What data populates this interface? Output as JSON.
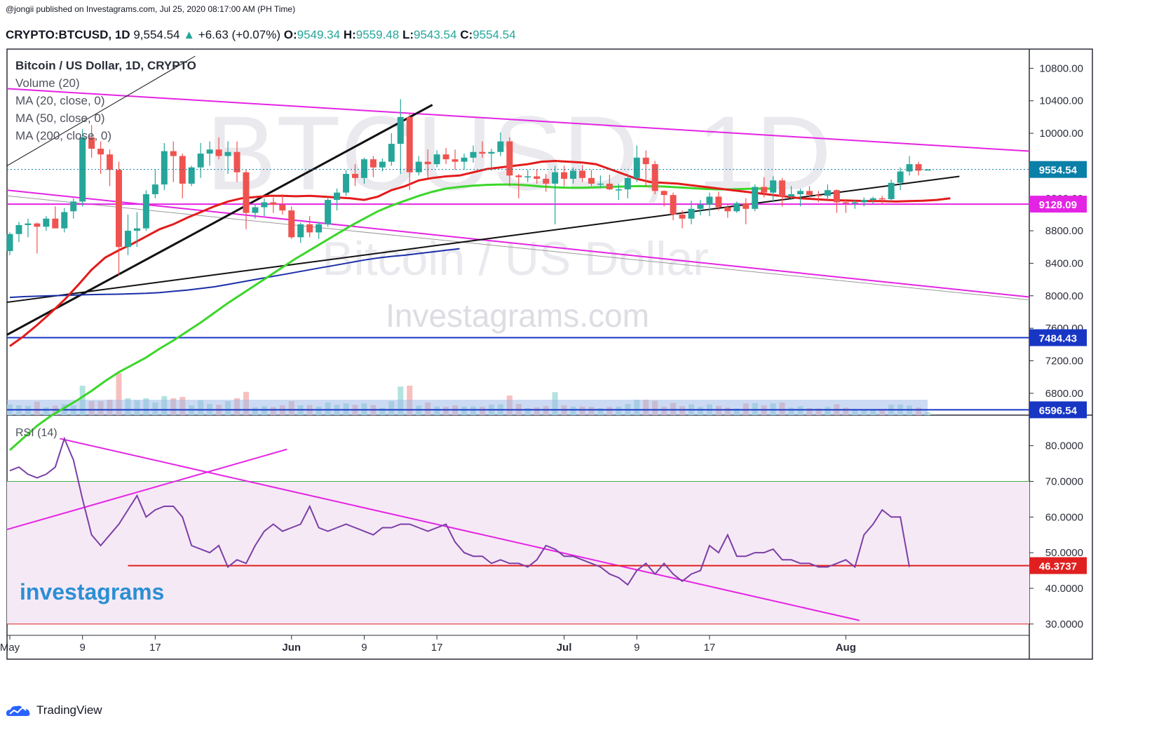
{
  "header": {
    "publish_line": "@jongii published on Investagrams.com, Jul 25, 2020 08:17:00 AM (PH Time)",
    "symbol": "CRYPTO:BTCUSD, 1D",
    "last": "9,554.54",
    "change": "+6.63 (+0.07%)",
    "o_label": "O:",
    "o_value": "9549.34",
    "h_label": "H:",
    "h_value": "9559.48",
    "l_label": "L:",
    "l_value": "9543.54",
    "c_label": "C:",
    "c_value": "9554.54"
  },
  "legend": {
    "title": "Bitcoin / US Dollar, 1D, CRYPTO",
    "volume": "Volume (20)",
    "ma20": "MA (20, close, 0)",
    "ma50": "MA (50, close, 0)",
    "ma200": "MA (200, close, 0)",
    "rsi": "RSI (14)"
  },
  "watermark": {
    "ticker": "BTCUSD, 1D",
    "name": "Bitcoin / US Dollar",
    "site": "Investagrams.com",
    "brand": "investagrams"
  },
  "footer": {
    "brand": "TradingView"
  },
  "colors": {
    "up": "#26a69a",
    "down": "#ef5350",
    "ma20": "#e31b1b",
    "ma50": "#3bd62a",
    "ma200": "#1a2fa8",
    "channel": "#e424e4",
    "rsi": "#7b3fa6",
    "badge_price": "#0a7fa8",
    "badge_magenta": "#e424e4",
    "badge_blue": "#1836c4",
    "badge_red": "#e02020"
  },
  "chart_data": [
    {
      "type": "candlestick",
      "title": "Bitcoin / US Dollar, 1D, CRYPTO",
      "ylim": [
        6600,
        10950
      ],
      "y_ticks": [
        "6800.00",
        "7200.00",
        "7600.00",
        "8000.00",
        "8400.00",
        "8800.00",
        "9200.00",
        "9600.00",
        "10000.00",
        "10400.00",
        "10800.00"
      ],
      "x_ticks": [
        "May",
        "9",
        "17",
        "Jun",
        "9",
        "17",
        "Jul",
        "9",
        "17",
        "Aug"
      ],
      "x_tick_days": [
        0,
        8,
        16,
        31,
        39,
        47,
        61,
        69,
        77,
        92
      ],
      "candles": [
        [
          0,
          8550,
          8780,
          8500,
          8760
        ],
        [
          1,
          8760,
          8910,
          8660,
          8870
        ],
        [
          2,
          8870,
          8950,
          8720,
          8890
        ],
        [
          3,
          8890,
          8900,
          8520,
          8850
        ],
        [
          4,
          8850,
          8980,
          8800,
          8950
        ],
        [
          5,
          8950,
          9100,
          8860,
          8830
        ],
        [
          6,
          8830,
          9080,
          8780,
          9030
        ],
        [
          7,
          9040,
          9200,
          8950,
          9160
        ],
        [
          8,
          9160,
          10050,
          9100,
          9950
        ],
        [
          9,
          9950,
          10100,
          9700,
          9810
        ],
        [
          10,
          9810,
          9900,
          9500,
          9740
        ],
        [
          11,
          9740,
          9800,
          9350,
          9550
        ],
        [
          12,
          9550,
          9650,
          8250,
          8600
        ],
        [
          13,
          8600,
          9000,
          8500,
          8800
        ],
        [
          14,
          8800,
          9030,
          8600,
          8830
        ],
        [
          15,
          8830,
          9300,
          8800,
          9250
        ],
        [
          16,
          9250,
          9550,
          9200,
          9370
        ],
        [
          17,
          9370,
          9880,
          9300,
          9780
        ],
        [
          18,
          9780,
          9900,
          9400,
          9720
        ],
        [
          19,
          9720,
          9750,
          9200,
          9380
        ],
        [
          20,
          9380,
          9600,
          9350,
          9580
        ],
        [
          21,
          9580,
          9880,
          9450,
          9750
        ],
        [
          22,
          9750,
          9900,
          9600,
          9800
        ],
        [
          23,
          9800,
          9950,
          9680,
          9720
        ],
        [
          24,
          9720,
          9900,
          9500,
          9770
        ],
        [
          25,
          9770,
          9900,
          9400,
          9520
        ],
        [
          26,
          9520,
          9550,
          8820,
          9020
        ],
        [
          27,
          9020,
          9130,
          8950,
          9090
        ],
        [
          28,
          9090,
          9200,
          8980,
          9150
        ],
        [
          29,
          9150,
          9210,
          9020,
          9120
        ],
        [
          30,
          9120,
          9250,
          9000,
          9050
        ],
        [
          31,
          9050,
          9100,
          8700,
          8720
        ],
        [
          32,
          8720,
          8900,
          8650,
          8880
        ],
        [
          33,
          8880,
          8980,
          8720,
          8780
        ],
        [
          34,
          8780,
          8910,
          8700,
          8880
        ],
        [
          35,
          8880,
          9200,
          8850,
          9180
        ],
        [
          36,
          9180,
          9320,
          9050,
          9270
        ],
        [
          37,
          9270,
          9550,
          9230,
          9500
        ],
        [
          38,
          9500,
          9620,
          9350,
          9450
        ],
        [
          39,
          9450,
          9700,
          9380,
          9680
        ],
        [
          40,
          9680,
          9720,
          9460,
          9580
        ],
        [
          41,
          9580,
          9690,
          9530,
          9650
        ],
        [
          42,
          9650,
          10000,
          9600,
          9870
        ],
        [
          43,
          9870,
          10420,
          9500,
          10200
        ],
        [
          44,
          10200,
          10250,
          9300,
          9520
        ],
        [
          45,
          9520,
          9720,
          9480,
          9650
        ],
        [
          46,
          9650,
          9800,
          9450,
          9620
        ],
        [
          47,
          9620,
          9790,
          9580,
          9740
        ],
        [
          48,
          9740,
          9820,
          9620,
          9680
        ],
        [
          49,
          9680,
          9800,
          9550,
          9650
        ],
        [
          50,
          9650,
          9750,
          9550,
          9700
        ],
        [
          51,
          9700,
          9850,
          9640,
          9770
        ],
        [
          52,
          9770,
          9900,
          9700,
          9750
        ],
        [
          53,
          9750,
          9810,
          9540,
          9770
        ],
        [
          54,
          9770,
          10010,
          9720,
          9900
        ],
        [
          55,
          9900,
          9950,
          9350,
          9480
        ],
        [
          56,
          9480,
          9500,
          9200,
          9460
        ],
        [
          57,
          9460,
          9550,
          9400,
          9470
        ],
        [
          58,
          9470,
          9560,
          9380,
          9440
        ],
        [
          59,
          9440,
          9500,
          9280,
          9380
        ],
        [
          60,
          9380,
          9600,
          8880,
          9520
        ],
        [
          61,
          9520,
          9600,
          9350,
          9440
        ],
        [
          62,
          9440,
          9580,
          9380,
          9540
        ],
        [
          63,
          9540,
          9610,
          9400,
          9450
        ],
        [
          64,
          9450,
          9550,
          9350,
          9380
        ],
        [
          65,
          9380,
          9480,
          9330,
          9380
        ],
        [
          66,
          9380,
          9490,
          9300,
          9310
        ],
        [
          67,
          9310,
          9380,
          9180,
          9310
        ],
        [
          68,
          9310,
          9500,
          9200,
          9450
        ],
        [
          69,
          9450,
          9850,
          9400,
          9700
        ],
        [
          70,
          9700,
          9790,
          9340,
          9620
        ],
        [
          71,
          9620,
          9660,
          9250,
          9290
        ],
        [
          72,
          9290,
          9300,
          9100,
          9240
        ],
        [
          73,
          9240,
          9270,
          8930,
          9000
        ],
        [
          74,
          9000,
          9050,
          8830,
          8950
        ],
        [
          75,
          8950,
          9170,
          8880,
          9070
        ],
        [
          76,
          9070,
          9180,
          8990,
          9120
        ],
        [
          77,
          9120,
          9270,
          8980,
          9220
        ],
        [
          78,
          9220,
          9280,
          9050,
          9090
        ],
        [
          79,
          9090,
          9130,
          8960,
          9040
        ],
        [
          80,
          9040,
          9160,
          9020,
          9140
        ],
        [
          81,
          9140,
          9200,
          8880,
          9070
        ],
        [
          82,
          9070,
          9370,
          9040,
          9340
        ],
        [
          83,
          9340,
          9460,
          9210,
          9270
        ],
        [
          84,
          9270,
          9470,
          9150,
          9420
        ],
        [
          85,
          9420,
          9450,
          9100,
          9220
        ],
        [
          86,
          9220,
          9350,
          9180,
          9250
        ],
        [
          87,
          9250,
          9320,
          9100,
          9290
        ],
        [
          88,
          9290,
          9350,
          9200,
          9240
        ],
        [
          89,
          9240,
          9290,
          9150,
          9230
        ],
        [
          90,
          9230,
          9370,
          9180,
          9300
        ],
        [
          91,
          9300,
          9310,
          9020,
          9150
        ],
        [
          92,
          9150,
          9190,
          9020,
          9140
        ],
        [
          93,
          9140,
          9180,
          9070,
          9150
        ],
        [
          94,
          9150,
          9210,
          9100,
          9180
        ],
        [
          95,
          9180,
          9220,
          9130,
          9200
        ],
        [
          96,
          9200,
          9230,
          9130,
          9190
        ],
        [
          97,
          9190,
          9430,
          9160,
          9390
        ],
        [
          98,
          9390,
          9580,
          9300,
          9530
        ],
        [
          99,
          9530,
          9720,
          9480,
          9620
        ],
        [
          100,
          9620,
          9650,
          9480,
          9540
        ],
        [
          101,
          9549.34,
          9559.48,
          9543.54,
          9554.54
        ]
      ],
      "note_candles": "each candle [day_index, open, high, low, close]",
      "ma20": [
        7380,
        7500,
        7640,
        7790,
        7950,
        8130,
        8320,
        8470,
        8560,
        8640,
        8730,
        8820,
        8880,
        8960,
        9030,
        9100,
        9160,
        9200,
        9215,
        9230,
        9230,
        9225,
        9230,
        9220,
        9210,
        9200,
        9180,
        9220,
        9300,
        9350,
        9420,
        9450,
        9470,
        9480,
        9520,
        9560,
        9580,
        9600,
        9620,
        9650,
        9660,
        9650,
        9640,
        9620,
        9560,
        9500,
        9440,
        9400,
        9390,
        9380,
        9360,
        9340,
        9320,
        9300,
        9280,
        9260,
        9240,
        9220,
        9200,
        9190,
        9180,
        9175,
        9170,
        9165,
        9165,
        9160,
        9165,
        9170,
        9180,
        9200
      ],
      "ma20_start_day": 0,
      "ma50": [
        6100,
        6250,
        6400,
        6520,
        6620,
        6720,
        6830,
        6950,
        7060,
        7150,
        7240,
        7350,
        7450,
        7560,
        7670,
        7790,
        7910,
        8020,
        8130,
        8240,
        8350,
        8460,
        8560,
        8660,
        8760,
        8860,
        8950,
        9040,
        9110,
        9170,
        9230,
        9280,
        9320,
        9340,
        9355,
        9365,
        9370,
        9370,
        9360,
        9345,
        9335,
        9330,
        9330,
        9335,
        9340,
        9345,
        9350,
        9348,
        9345,
        9335,
        9325,
        9315,
        9310,
        9310,
        9315,
        9320,
        9318
      ],
      "ma50_start_day": 0,
      "ma200": [
        7980,
        7990,
        7995,
        8000,
        8005,
        8010,
        8015,
        8018,
        8020,
        8025,
        8030,
        8040,
        8055,
        8070,
        8090,
        8110,
        8140,
        8170,
        8200,
        8230,
        8260,
        8290,
        8320,
        8350,
        8380,
        8410,
        8440,
        8465,
        8485,
        8500,
        8520,
        8540,
        8560,
        8580
      ],
      "ma200_start_day": 0,
      "horizontal_levels": [
        {
          "label": "9128.09",
          "value": 9128.09,
          "color": "#e424e4"
        },
        {
          "label": "7484.43",
          "value": 7484.43,
          "color": "#1836c4"
        },
        {
          "label": "6596.54",
          "value": 6596.54,
          "color": "#1836c4"
        }
      ],
      "last_price": {
        "label": "9554.54",
        "value": 9554.54
      }
    },
    {
      "type": "line",
      "title": "RSI (14)",
      "ylim": [
        28,
        87
      ],
      "y_ticks": [
        "30.0000",
        "40.0000",
        "50.0000",
        "60.0000",
        "70.0000",
        "80.0000"
      ],
      "upper_band": 70,
      "lower_band": 30,
      "level": {
        "label": "46.3737",
        "value": 46.3737
      },
      "series": [
        {
          "values": [
            73,
            74,
            72,
            71,
            72,
            74,
            82,
            76,
            65,
            55,
            52,
            55,
            58,
            62,
            66,
            60,
            62,
            63,
            63,
            60,
            52,
            51,
            50,
            52,
            46,
            48,
            47,
            52,
            56,
            58,
            56,
            57,
            58,
            63,
            57,
            56,
            57,
            58,
            57,
            56,
            55,
            57,
            57,
            58,
            58,
            57,
            56,
            57,
            58,
            53,
            50,
            49,
            49,
            47,
            48,
            47,
            47,
            46,
            48,
            52,
            51,
            49,
            49,
            48,
            47,
            46,
            44,
            43,
            41,
            45,
            47,
            44,
            47,
            44,
            42,
            44,
            45,
            52,
            50,
            55,
            49,
            49,
            50,
            50,
            51,
            48,
            48,
            47,
            47,
            46,
            46,
            47,
            48,
            46,
            55,
            58,
            62,
            60,
            60,
            46
          ]
        }
      ]
    }
  ]
}
